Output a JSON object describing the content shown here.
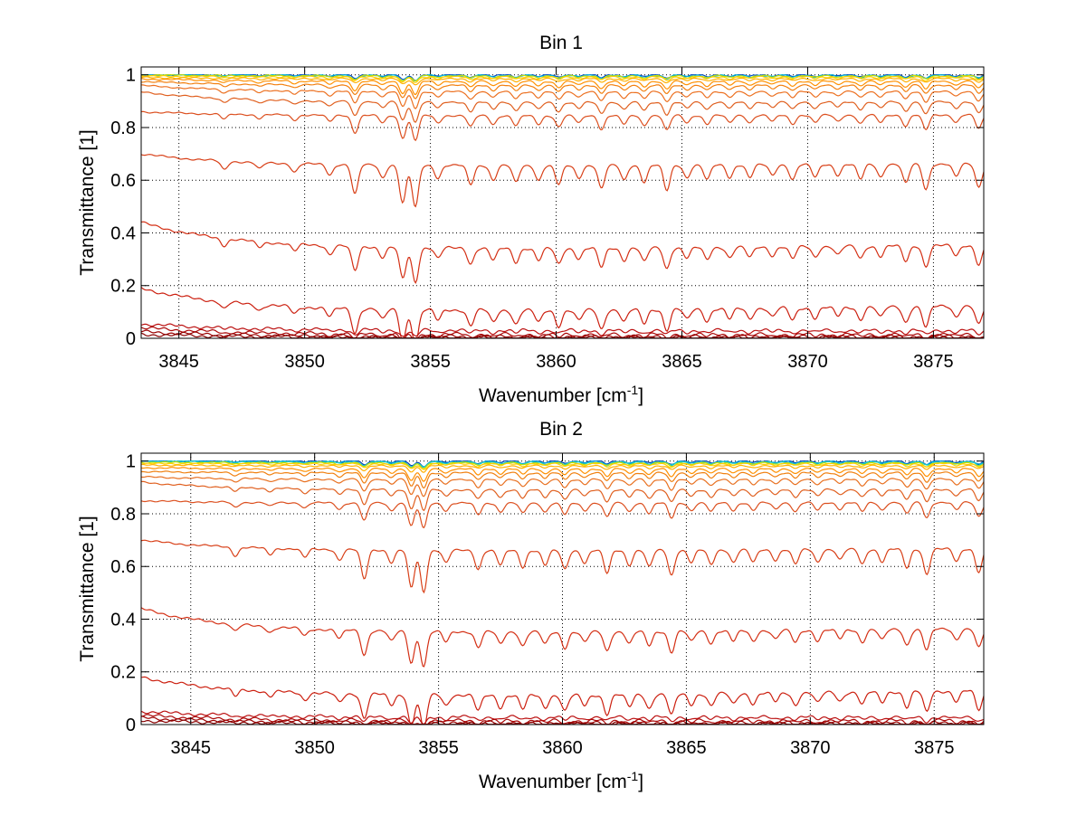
{
  "chart_data": [
    {
      "type": "line",
      "title": "Bin 1",
      "xlabel": "Wavenumber [cm",
      "xlabel_superscript": "-1",
      "xlabel_close": "]",
      "ylabel": "Transmittance [1]",
      "xlim": [
        3843.5,
        3877
      ],
      "ylim": [
        0,
        1.03
      ],
      "xticks": [
        3845,
        3850,
        3855,
        3860,
        3865,
        3870,
        3875
      ],
      "yticks": [
        0,
        0.2,
        0.4,
        0.6,
        0.8,
        1
      ],
      "ytick_labels": [
        "0",
        "0.2",
        "0.4",
        "0.6",
        "0.8",
        "1"
      ],
      "grid": true,
      "x_start": 3843.5,
      "series": [
        {
          "color": "#0050c8",
          "start": 1.0,
          "level": 1.0
        },
        {
          "color": "#00b4d8",
          "start": 1.0,
          "level": 0.998
        },
        {
          "color": "#c8e000",
          "start": 1.0,
          "level": 0.996
        },
        {
          "color": "#ffd000",
          "start": 0.995,
          "level": 0.992
        },
        {
          "color": "#ffb000",
          "start": 0.99,
          "level": 0.985
        },
        {
          "color": "#ff9000",
          "start": 0.985,
          "level": 0.975
        },
        {
          "color": "#f28010",
          "start": 0.975,
          "level": 0.96
        },
        {
          "color": "#ec7020",
          "start": 0.96,
          "level": 0.935
        },
        {
          "color": "#e06020",
          "start": 0.935,
          "level": 0.895
        },
        {
          "color": "#dc5020",
          "start": 0.86,
          "level": 0.845
        },
        {
          "color": "#d84018",
          "start": 0.7,
          "level": 0.655
        },
        {
          "color": "#d43015",
          "start": 0.44,
          "level": 0.34
        },
        {
          "color": "#cc2010",
          "start": 0.19,
          "level": 0.105
        },
        {
          "color": "#bb1010",
          "start": 0.055,
          "level": 0.03
        },
        {
          "color": "#aa0808",
          "start": 0.04,
          "level": 0.015
        },
        {
          "color": "#990000",
          "start": 0.025,
          "level": 0.008
        },
        {
          "color": "#880000",
          "start": 0.015,
          "level": 0.004
        }
      ]
    },
    {
      "type": "line",
      "title": "Bin 2",
      "xlabel": "Wavenumber [cm",
      "xlabel_superscript": "-1",
      "xlabel_close": "]",
      "ylabel": "Transmittance [1]",
      "xlim": [
        3843,
        3877
      ],
      "ylim": [
        0,
        1.03
      ],
      "xticks": [
        3845,
        3850,
        3855,
        3860,
        3865,
        3870,
        3875
      ],
      "yticks": [
        0,
        0.2,
        0.4,
        0.6,
        0.8,
        1
      ],
      "ytick_labels": [
        "0",
        "0.2",
        "0.4",
        "0.6",
        "0.8",
        "1"
      ],
      "grid": true,
      "x_start": 3843,
      "series": [
        {
          "color": "#0040b0",
          "start": 1.0,
          "level": 1.0
        },
        {
          "color": "#00a0e0",
          "start": 1.0,
          "level": 0.998
        },
        {
          "color": "#20d0c0",
          "start": 1.0,
          "level": 0.996
        },
        {
          "color": "#c8e000",
          "start": 0.995,
          "level": 0.993
        },
        {
          "color": "#ffd000",
          "start": 0.99,
          "level": 0.99
        },
        {
          "color": "#ffb000",
          "start": 0.985,
          "level": 0.982
        },
        {
          "color": "#ff9000",
          "start": 0.975,
          "level": 0.97
        },
        {
          "color": "#f08010",
          "start": 0.96,
          "level": 0.955
        },
        {
          "color": "#e87020",
          "start": 0.94,
          "level": 0.93
        },
        {
          "color": "#e06020",
          "start": 0.92,
          "level": 0.89
        },
        {
          "color": "#dc5020",
          "start": 0.85,
          "level": 0.84
        },
        {
          "color": "#d84018",
          "start": 0.7,
          "level": 0.66
        },
        {
          "color": "#d43015",
          "start": 0.44,
          "level": 0.35
        },
        {
          "color": "#cc2010",
          "start": 0.18,
          "level": 0.11
        },
        {
          "color": "#bb1010",
          "start": 0.05,
          "level": 0.028
        },
        {
          "color": "#aa0808",
          "start": 0.035,
          "level": 0.015
        },
        {
          "color": "#990000",
          "start": 0.025,
          "level": 0.008
        },
        {
          "color": "#880000",
          "start": 0.015,
          "level": 0.004
        }
      ]
    }
  ],
  "absorption_lines": [
    {
      "x": 3846.8,
      "depth": 0.2
    },
    {
      "x": 3848.2,
      "depth": 0.15
    },
    {
      "x": 3849.6,
      "depth": 0.2
    },
    {
      "x": 3851.0,
      "depth": 0.25
    },
    {
      "x": 3852.0,
      "depth": 0.7
    },
    {
      "x": 3853.1,
      "depth": 0.3
    },
    {
      "x": 3853.9,
      "depth": 0.9
    },
    {
      "x": 3854.4,
      "depth": 1.0
    },
    {
      "x": 3855.3,
      "depth": 0.3
    },
    {
      "x": 3856.6,
      "depth": 0.45
    },
    {
      "x": 3857.5,
      "depth": 0.35
    },
    {
      "x": 3858.4,
      "depth": 0.4
    },
    {
      "x": 3859.3,
      "depth": 0.35
    },
    {
      "x": 3860.1,
      "depth": 0.45
    },
    {
      "x": 3860.9,
      "depth": 0.3
    },
    {
      "x": 3861.8,
      "depth": 0.55
    },
    {
      "x": 3862.7,
      "depth": 0.35
    },
    {
      "x": 3863.5,
      "depth": 0.4
    },
    {
      "x": 3864.4,
      "depth": 0.6
    },
    {
      "x": 3865.2,
      "depth": 0.3
    },
    {
      "x": 3866.0,
      "depth": 0.35
    },
    {
      "x": 3866.9,
      "depth": 0.3
    },
    {
      "x": 3867.7,
      "depth": 0.3
    },
    {
      "x": 3868.6,
      "depth": 0.25
    },
    {
      "x": 3869.4,
      "depth": 0.35
    },
    {
      "x": 3870.3,
      "depth": 0.3
    },
    {
      "x": 3871.2,
      "depth": 0.25
    },
    {
      "x": 3872.1,
      "depth": 0.35
    },
    {
      "x": 3872.9,
      "depth": 0.3
    },
    {
      "x": 3873.9,
      "depth": 0.45
    },
    {
      "x": 3874.7,
      "depth": 0.6
    },
    {
      "x": 3875.9,
      "depth": 0.3
    },
    {
      "x": 3876.8,
      "depth": 0.55
    }
  ]
}
